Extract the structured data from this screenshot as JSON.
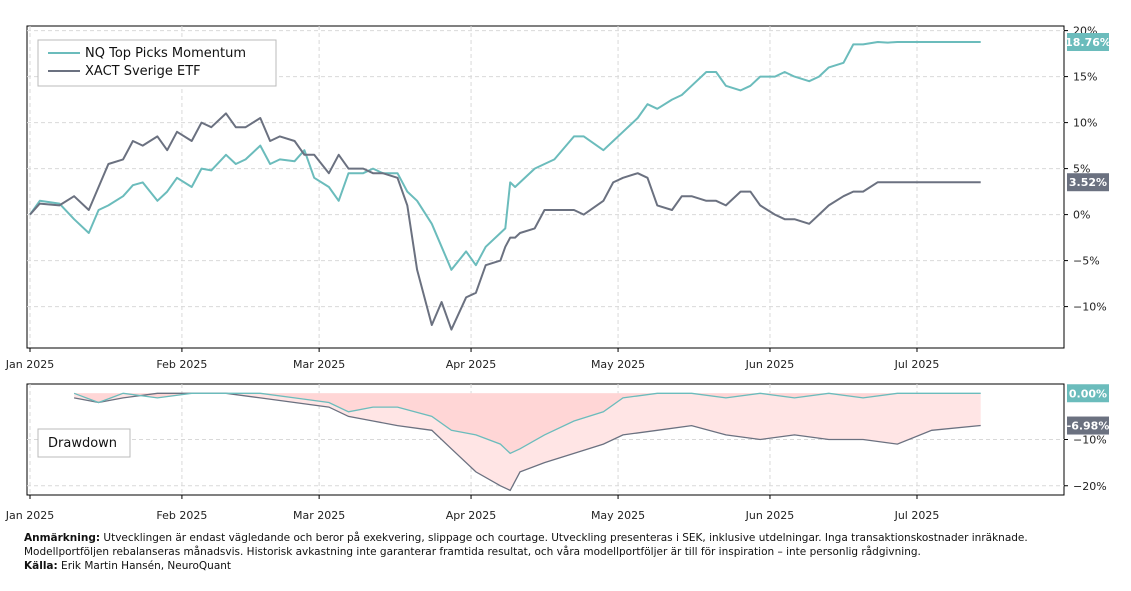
{
  "colors": {
    "momentum": "#6bbcbc",
    "etf": "#6b7180",
    "drawdown_momentum_fill": "#ffd6d6",
    "drawdown_etf_fill": "#ffe5e5",
    "grid": "#d9d9d9"
  },
  "chart_data": [
    {
      "type": "line",
      "xlabel": "",
      "ylabel": "",
      "grid": true,
      "legend_placement": "top-left",
      "x_ticks": [
        "Jan 2025",
        "Feb 2025",
        "Mar 2025",
        "Apr 2025",
        "May 2025",
        "Jun 2025",
        "Jul 2025"
      ],
      "y_ticks": [
        "20%",
        "15%",
        "10%",
        "5%",
        "0%",
        "−5%",
        "−10%"
      ],
      "ylim": [
        -14.5,
        20.5
      ],
      "xlim": [
        "2025-01-01",
        "2025-07-31"
      ],
      "series": [
        {
          "name": "NQ Top Picks Momentum",
          "end_label": "18.76%",
          "x": [
            "2025-01-01",
            "2025-01-03",
            "2025-01-07",
            "2025-01-10",
            "2025-01-13",
            "2025-01-15",
            "2025-01-17",
            "2025-01-20",
            "2025-01-22",
            "2025-01-24",
            "2025-01-27",
            "2025-01-29",
            "2025-01-31",
            "2025-02-03",
            "2025-02-05",
            "2025-02-07",
            "2025-02-10",
            "2025-02-12",
            "2025-02-14",
            "2025-02-17",
            "2025-02-19",
            "2025-02-21",
            "2025-02-24",
            "2025-02-26",
            "2025-02-28",
            "2025-03-03",
            "2025-03-05",
            "2025-03-07",
            "2025-03-10",
            "2025-03-12",
            "2025-03-14",
            "2025-03-17",
            "2025-03-19",
            "2025-03-21",
            "2025-03-24",
            "2025-03-26",
            "2025-03-28",
            "2025-03-31",
            "2025-04-02",
            "2025-04-04",
            "2025-04-07",
            "2025-04-08",
            "2025-04-09",
            "2025-04-10",
            "2025-04-11",
            "2025-04-14",
            "2025-04-16",
            "2025-04-18",
            "2025-04-22",
            "2025-04-24",
            "2025-04-28",
            "2025-04-30",
            "2025-05-02",
            "2025-05-05",
            "2025-05-07",
            "2025-05-09",
            "2025-05-12",
            "2025-05-14",
            "2025-05-16",
            "2025-05-19",
            "2025-05-21",
            "2025-05-23",
            "2025-05-26",
            "2025-05-28",
            "2025-05-30",
            "2025-06-02",
            "2025-06-04",
            "2025-06-06",
            "2025-06-09",
            "2025-06-11",
            "2025-06-13",
            "2025-06-16",
            "2025-06-18",
            "2025-06-20",
            "2025-06-23",
            "2025-06-25",
            "2025-06-27",
            "2025-06-30",
            "2025-07-02",
            "2025-07-04",
            "2025-07-07",
            "2025-07-09",
            "2025-07-11",
            "2025-07-14"
          ],
          "values": [
            0,
            1.5,
            1.2,
            -0.5,
            -2,
            0.5,
            1,
            2,
            3.2,
            3.5,
            1.5,
            2.5,
            4,
            3,
            5,
            4.8,
            6.5,
            5.5,
            6,
            7.5,
            5.5,
            6,
            5.8,
            7,
            4,
            3,
            1.5,
            4.5,
            4.5,
            5,
            4.5,
            4.5,
            2.5,
            1.5,
            -1,
            -3.5,
            -6,
            -4,
            -5.5,
            -3.5,
            -2,
            -1.5,
            3.5,
            3,
            3.5,
            5,
            5.5,
            6,
            8.5,
            8.5,
            7,
            8,
            9,
            10.5,
            12,
            11.5,
            12.5,
            13,
            14,
            15.5,
            15.5,
            14,
            13.5,
            14,
            15,
            15,
            15.5,
            15,
            14.5,
            15,
            16,
            16.5,
            18.5,
            18.5,
            18.76,
            18.7,
            18.76,
            18.76,
            18.76,
            18.76,
            18.76,
            18.76,
            18.76,
            18.76
          ]
        },
        {
          "name": "XACT Sverige ETF",
          "end_label": "3.52%",
          "x": [
            "2025-01-01",
            "2025-01-03",
            "2025-01-07",
            "2025-01-10",
            "2025-01-13",
            "2025-01-15",
            "2025-01-17",
            "2025-01-20",
            "2025-01-22",
            "2025-01-24",
            "2025-01-27",
            "2025-01-29",
            "2025-01-31",
            "2025-02-03",
            "2025-02-05",
            "2025-02-07",
            "2025-02-10",
            "2025-02-12",
            "2025-02-14",
            "2025-02-17",
            "2025-02-19",
            "2025-02-21",
            "2025-02-24",
            "2025-02-26",
            "2025-02-28",
            "2025-03-03",
            "2025-03-05",
            "2025-03-07",
            "2025-03-10",
            "2025-03-12",
            "2025-03-14",
            "2025-03-17",
            "2025-03-19",
            "2025-03-21",
            "2025-03-24",
            "2025-03-26",
            "2025-03-28",
            "2025-03-31",
            "2025-04-02",
            "2025-04-04",
            "2025-04-07",
            "2025-04-08",
            "2025-04-09",
            "2025-04-10",
            "2025-04-11",
            "2025-04-14",
            "2025-04-16",
            "2025-04-18",
            "2025-04-22",
            "2025-04-24",
            "2025-04-28",
            "2025-04-30",
            "2025-05-02",
            "2025-05-05",
            "2025-05-07",
            "2025-05-09",
            "2025-05-12",
            "2025-05-14",
            "2025-05-16",
            "2025-05-19",
            "2025-05-21",
            "2025-05-23",
            "2025-05-26",
            "2025-05-28",
            "2025-05-30",
            "2025-06-02",
            "2025-06-04",
            "2025-06-06",
            "2025-06-09",
            "2025-06-11",
            "2025-06-13",
            "2025-06-16",
            "2025-06-18",
            "2025-06-20",
            "2025-06-23",
            "2025-06-25",
            "2025-06-27",
            "2025-06-30",
            "2025-07-02",
            "2025-07-04",
            "2025-07-07",
            "2025-07-09",
            "2025-07-11",
            "2025-07-14"
          ],
          "values": [
            0,
            1.2,
            1,
            2,
            0.5,
            3,
            5.5,
            6,
            8,
            7.5,
            8.5,
            7,
            9,
            8,
            10,
            9.5,
            11,
            9.5,
            9.5,
            10.5,
            8,
            8.5,
            8,
            6.5,
            6.5,
            4.5,
            6.5,
            5,
            5,
            4.5,
            4.5,
            4,
            1,
            -6,
            -12,
            -9.5,
            -12.5,
            -9,
            -8.5,
            -5.5,
            -5,
            -3.5,
            -2.5,
            -2.5,
            -2,
            -1.5,
            0.5,
            0.5,
            0.5,
            0,
            1.5,
            3.5,
            4,
            4.5,
            4,
            1,
            0.5,
            2,
            2,
            1.5,
            1.5,
            1,
            2.5,
            2.5,
            1,
            0,
            -0.5,
            -0.5,
            -1,
            0,
            1,
            2,
            2.5,
            2.5,
            3.52,
            3.52,
            3.52,
            3.52,
            3.52,
            3.52,
            3.52,
            3.52,
            3.52,
            3.52
          ]
        }
      ]
    },
    {
      "type": "area",
      "title": "Drawdown",
      "xlabel": "",
      "ylabel": "",
      "grid": true,
      "x_ticks": [
        "Jan 2025",
        "Feb 2025",
        "Mar 2025",
        "Apr 2025",
        "May 2025",
        "Jun 2025",
        "Jul 2025"
      ],
      "y_ticks": [
        "−10%",
        "−20%"
      ],
      "ylim": [
        -22,
        2
      ],
      "xlim": [
        "2025-01-01",
        "2025-07-31"
      ],
      "series": [
        {
          "name": "NQ Top Picks Momentum",
          "end_label": "0.00%",
          "x": [
            "2025-01-10",
            "2025-01-15",
            "2025-01-20",
            "2025-01-27",
            "2025-02-03",
            "2025-02-10",
            "2025-02-17",
            "2025-02-24",
            "2025-03-03",
            "2025-03-07",
            "2025-03-12",
            "2025-03-17",
            "2025-03-24",
            "2025-03-28",
            "2025-04-02",
            "2025-04-07",
            "2025-04-09",
            "2025-04-11",
            "2025-04-16",
            "2025-04-22",
            "2025-04-28",
            "2025-05-02",
            "2025-05-09",
            "2025-05-16",
            "2025-05-23",
            "2025-05-30",
            "2025-06-06",
            "2025-06-13",
            "2025-06-20",
            "2025-06-27",
            "2025-07-04",
            "2025-07-14"
          ],
          "values": [
            0,
            -2,
            0,
            -1,
            0,
            0,
            0,
            -1,
            -2,
            -4,
            -3,
            -3,
            -5,
            -8,
            -9,
            -11,
            -13,
            -12,
            -9,
            -6,
            -4,
            -1,
            0,
            0,
            -1,
            0,
            -1,
            0,
            -1,
            0,
            0,
            0
          ]
        },
        {
          "name": "XACT Sverige ETF",
          "end_label": "-6.98%",
          "x": [
            "2025-01-10",
            "2025-01-15",
            "2025-01-20",
            "2025-01-27",
            "2025-02-03",
            "2025-02-10",
            "2025-02-17",
            "2025-02-24",
            "2025-03-03",
            "2025-03-07",
            "2025-03-12",
            "2025-03-17",
            "2025-03-24",
            "2025-03-28",
            "2025-04-02",
            "2025-04-07",
            "2025-04-09",
            "2025-04-11",
            "2025-04-16",
            "2025-04-22",
            "2025-04-28",
            "2025-05-02",
            "2025-05-09",
            "2025-05-16",
            "2025-05-23",
            "2025-05-30",
            "2025-06-06",
            "2025-06-13",
            "2025-06-20",
            "2025-06-27",
            "2025-07-04",
            "2025-07-14"
          ],
          "values": [
            -1,
            -2,
            -1,
            0,
            0,
            0,
            -1,
            -2,
            -3,
            -5,
            -6,
            -7,
            -8,
            -12,
            -17,
            -20,
            -21,
            -17,
            -15,
            -13,
            -11,
            -9,
            -8,
            -7,
            -9,
            -10,
            -9,
            -10,
            -10,
            -11,
            -8,
            -6.98
          ]
        }
      ]
    }
  ],
  "footnote": {
    "note_label": "Anmärkning:",
    "note_text": " Utvecklingen är endast vägledande och beror på exekvering, slippage och courtage. Utveckling presenteras i SEK, inklusive utdelningar. Inga transaktionskostnader inräknade. Modellportföljen rebalanseras månadsvis. Historisk avkastning inte garanterar framtida resultat, och våra modellportföljer är till för inspiration – inte personlig rådgivning.",
    "source_label": "Källa:",
    "source_text": " Erik Martin Hansén, NeuroQuant"
  }
}
